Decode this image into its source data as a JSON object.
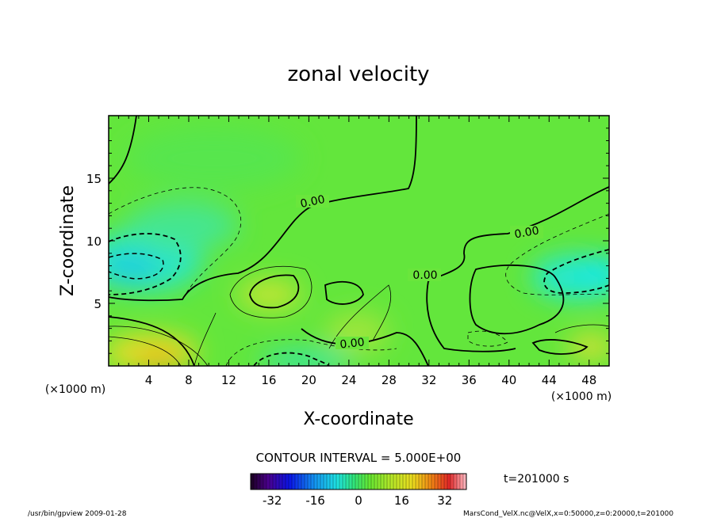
{
  "chart_data": {
    "type": "heatmap",
    "title": "zonal velocity",
    "xlabel": "X-coordinate",
    "ylabel": "Z-coordinate",
    "x_unit": "(×1000 m)",
    "y_unit": "(×1000 m)",
    "xlim": [
      0,
      50
    ],
    "ylim": [
      0,
      20
    ],
    "x_ticks": [
      "4",
      "8",
      "12",
      "16",
      "20",
      "24",
      "28",
      "32",
      "36",
      "40",
      "44",
      "48"
    ],
    "y_ticks": [
      "5",
      "10",
      "15"
    ],
    "contour_interval_label": "CONTOUR INTERVAL = 5.000E+00",
    "contour_labels": [
      "0.00",
      "0.00",
      "0.00",
      "0.00"
    ],
    "colorbar": {
      "min": -40,
      "max": 40,
      "ticks": [
        "-32",
        "-16",
        "0",
        "16",
        "32"
      ]
    },
    "time_label": "t=201000 s"
  },
  "footer": {
    "left": "/usr/bin/gpview  2009-01-28",
    "right": "MarsCond_VelX.nc@VelX,x=0:50000,z=0:20000,t=201000"
  }
}
